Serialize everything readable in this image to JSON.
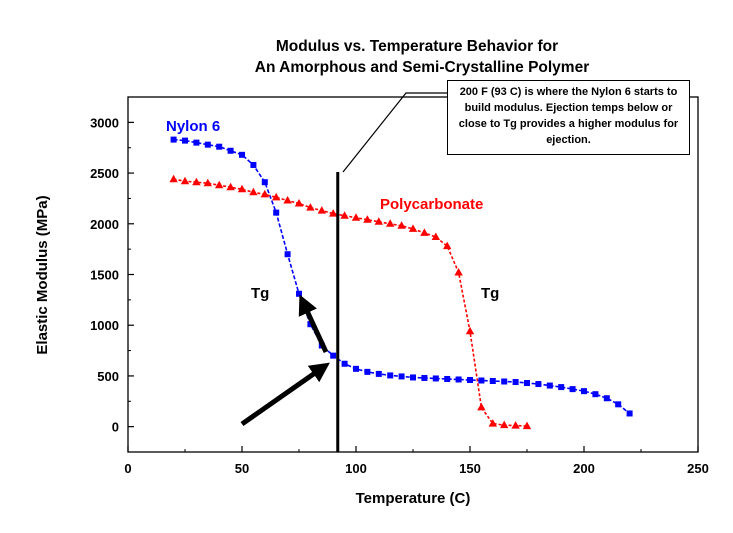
{
  "note": "200 F (93 C) is where the Nylon 6 starts to build modulus.  Ejection temps below or close to Tg provides a higher modulus for ejection.",
  "chart_data": {
    "type": "scatter",
    "title": [
      "Modulus vs. Temperature Behavior for",
      "An Amorphous and Semi-Crystalline Polymer"
    ],
    "xlabel": "Temperature (C)",
    "ylabel": "Elastic Modulus (MPa)",
    "xlim": [
      0,
      250
    ],
    "ylim": [
      -250,
      3250
    ],
    "xticks": [
      0,
      50,
      100,
      150,
      200,
      250
    ],
    "yticks": [
      0,
      500,
      1000,
      1500,
      2000,
      2500,
      3000
    ],
    "grid": false,
    "series": [
      {
        "name": "Nylon 6",
        "color": "#0000ff",
        "marker": "square",
        "x": [
          20,
          25,
          30,
          35,
          40,
          45,
          50,
          55,
          60,
          65,
          70,
          75,
          80,
          85,
          90,
          95,
          100,
          105,
          110,
          115,
          120,
          125,
          130,
          135,
          140,
          145,
          150,
          155,
          160,
          165,
          170,
          175,
          180,
          185,
          190,
          195,
          200,
          205,
          210,
          215,
          220
        ],
        "y": [
          2830,
          2820,
          2800,
          2780,
          2760,
          2720,
          2680,
          2580,
          2410,
          2110,
          1700,
          1310,
          1010,
          800,
          700,
          620,
          570,
          540,
          520,
          505,
          495,
          485,
          480,
          475,
          470,
          465,
          460,
          455,
          450,
          445,
          440,
          430,
          420,
          405,
          390,
          370,
          350,
          320,
          280,
          220,
          130
        ]
      },
      {
        "name": "Polycarbonate",
        "color": "#ff0000",
        "marker": "triangle",
        "x": [
          20,
          25,
          30,
          35,
          40,
          45,
          50,
          55,
          60,
          65,
          70,
          75,
          80,
          85,
          90,
          95,
          100,
          105,
          110,
          115,
          120,
          125,
          130,
          135,
          140,
          145,
          150,
          155,
          160,
          165,
          170,
          175
        ],
        "y": [
          2440,
          2420,
          2410,
          2400,
          2380,
          2360,
          2340,
          2310,
          2290,
          2260,
          2230,
          2200,
          2160,
          2130,
          2100,
          2080,
          2060,
          2040,
          2020,
          2000,
          1980,
          1950,
          1910,
          1870,
          1780,
          1520,
          940,
          190,
          30,
          15,
          10,
          5
        ]
      }
    ],
    "annotations": {
      "tg_label": "Tg",
      "reference_line_x": 92
    }
  }
}
